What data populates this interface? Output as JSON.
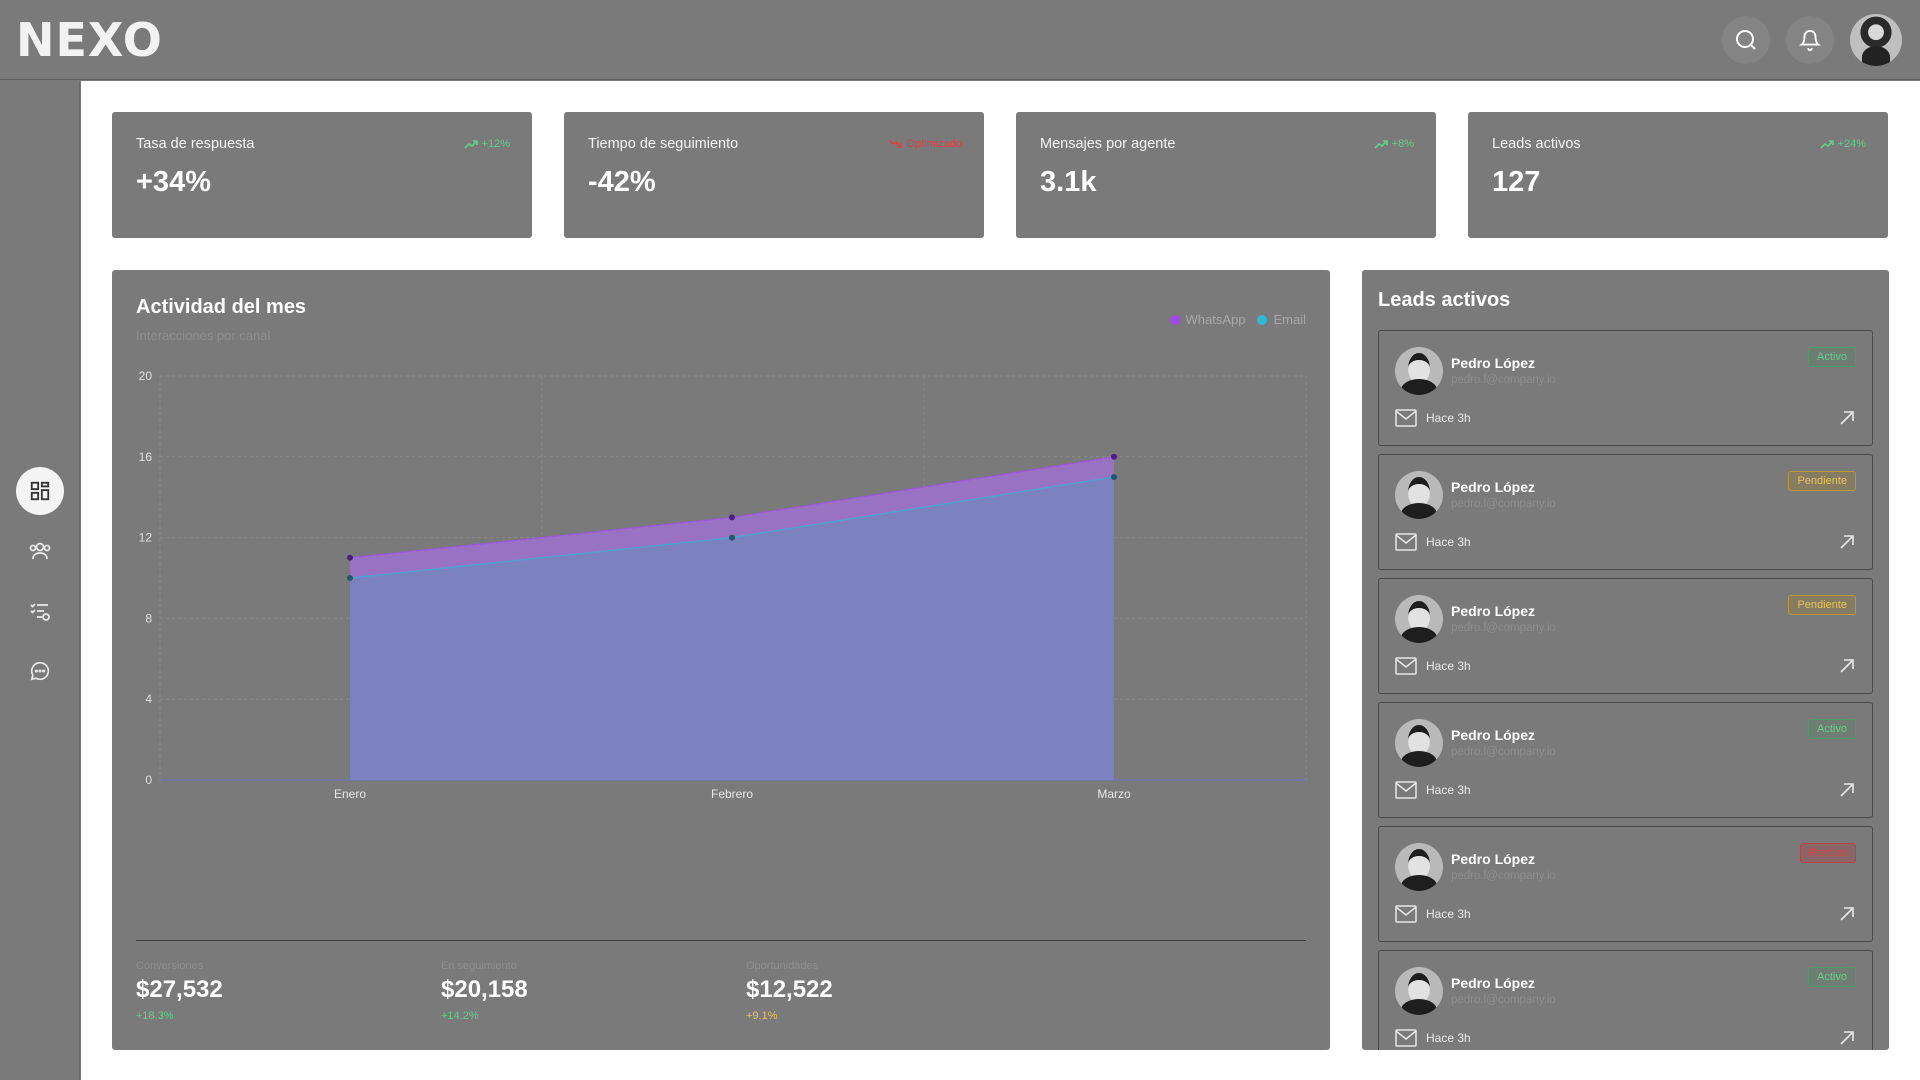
{
  "brand": {
    "logo": "NEXO"
  },
  "header": {
    "icons": [
      "search-icon",
      "bell-icon",
      "user-avatar"
    ]
  },
  "sidebar": {
    "items": [
      {
        "name": "dashboard",
        "icon": "dashboard-icon",
        "active": true
      },
      {
        "name": "users",
        "icon": "users-icon",
        "active": false
      },
      {
        "name": "tasks",
        "icon": "task-list-icon",
        "active": false
      },
      {
        "name": "chat",
        "icon": "chat-icon",
        "active": false
      }
    ]
  },
  "kpis": [
    {
      "label": "Tasa de respuesta",
      "value": "+34%",
      "trend": "+12%",
      "direction": "up"
    },
    {
      "label": "Tiempo de seguimiento",
      "value": "-42%",
      "trend": "Optimizado",
      "direction": "down"
    },
    {
      "label": "Mensajes por agente",
      "value": "3.1k",
      "trend": "+8%",
      "direction": "up"
    },
    {
      "label": "Leads activos",
      "value": "127",
      "trend": "+24%",
      "direction": "up"
    }
  ],
  "activity": {
    "title": "Actividad del mes",
    "subtitle": "Interacciones por canal",
    "legend": [
      {
        "name": "WhatsApp",
        "color": "#a24cf0"
      },
      {
        "name": "Email",
        "color": "#2fb8d8"
      }
    ],
    "stats": [
      {
        "label": "Conversiones",
        "value": "$27,532",
        "change": "+18.3%",
        "color": "#5fd18a"
      },
      {
        "label": "En seguimiento",
        "value": "$20,158",
        "change": "+14.2%",
        "color": "#5fd18a"
      },
      {
        "label": "Oportunidades",
        "value": "$12,522",
        "change": "+9.1%",
        "color": "#e8c35a"
      }
    ]
  },
  "chart_data": {
    "type": "area",
    "title": "Actividad del mes",
    "subtitle": "Interacciones por canal",
    "categories": [
      "Enero",
      "Febrero",
      "Marzo"
    ],
    "series": [
      {
        "name": "WhatsApp",
        "values": [
          11,
          13,
          16
        ],
        "color": "#a24cf0"
      },
      {
        "name": "Email",
        "values": [
          10,
          12,
          15
        ],
        "color": "#2fb8d8"
      }
    ],
    "yticks": [
      "0",
      "4",
      "8",
      "12",
      "16",
      "20"
    ],
    "ylim": [
      0,
      20
    ],
    "grid": true,
    "legend": "top-right"
  },
  "leads": {
    "title": "Leads activos",
    "items": [
      {
        "name": "Pedro López",
        "email": "pedro.l@company.io",
        "status": "Activo",
        "status_key": "activo",
        "time": "Hace 3h"
      },
      {
        "name": "Pedro López",
        "email": "pedro.l@company.io",
        "status": "Pendiente",
        "status_key": "pendiente",
        "time": "Hace 3h"
      },
      {
        "name": "Pedro López",
        "email": "pedro.l@company.io",
        "status": "Pendiente",
        "status_key": "pendiente",
        "time": "Hace 3h"
      },
      {
        "name": "Pedro López",
        "email": "pedro.l@company.io",
        "status": "Activo",
        "status_key": "activo",
        "time": "Hace 3h"
      },
      {
        "name": "Pedro López",
        "email": "pedro.l@company.io",
        "status": "Perdido",
        "status_key": "perdido",
        "time": "Hace 3h"
      },
      {
        "name": "Pedro López",
        "email": "pedro.l@company.io",
        "status": "Activo",
        "status_key": "activo",
        "time": "Hace 3h"
      }
    ]
  }
}
